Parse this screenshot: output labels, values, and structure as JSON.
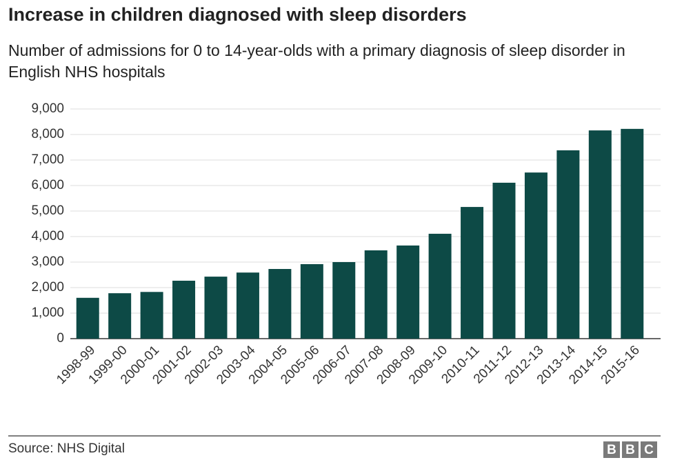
{
  "chart_data": {
    "type": "bar",
    "title": "Increase in children diagnosed with sleep disorders",
    "subtitle": "Number of admissions for 0 to 14-year-olds with a primary diagnosis of sleep disorder in English NHS hospitals",
    "categories": [
      "1998-99",
      "1999-00",
      "2000-01",
      "2001-02",
      "2002-03",
      "2003-04",
      "2004-05",
      "2005-06",
      "2006-07",
      "2007-08",
      "2008-09",
      "2009-10",
      "2010-11",
      "2011-12",
      "2012-13",
      "2013-14",
      "2014-15",
      "2015-16"
    ],
    "values": [
      1600,
      1780,
      1830,
      2270,
      2430,
      2590,
      2730,
      2920,
      3000,
      3460,
      3650,
      4110,
      5160,
      6110,
      6510,
      7380,
      8160,
      8220
    ],
    "color": "#0d4a46",
    "ylim": [
      0,
      9000
    ],
    "yticks": [
      0,
      {
        "value": 1000,
        "label": "1,000"
      },
      {
        "value": 2000,
        "label": "2,000"
      },
      {
        "value": 3000,
        "label": "3,000"
      },
      {
        "value": 4000,
        "label": "4,000"
      },
      {
        "value": 5000,
        "label": "5,000"
      },
      {
        "value": 6000,
        "label": "6,000"
      },
      {
        "value": 7000,
        "label": "7,000"
      },
      {
        "value": 8000,
        "label": "8,000"
      },
      {
        "value": 9000,
        "label": "9,000"
      }
    ],
    "grid": true,
    "source": "Source: NHS Digital",
    "logo": "BBC"
  }
}
